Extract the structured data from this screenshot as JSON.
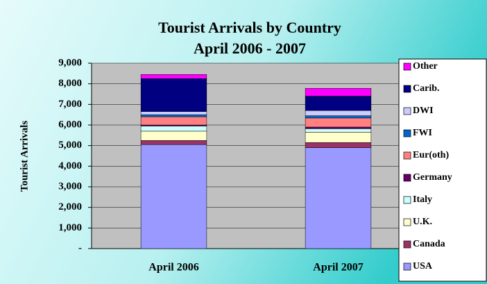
{
  "chart_data": {
    "type": "stacked_bar",
    "title": "Tourist Arrivals by Country",
    "subtitle": "April 2006 - 2007",
    "y_label": "Tourist Arrivals",
    "categories": [
      "April 2006",
      "April 2007"
    ],
    "series": [
      {
        "name": "USA",
        "color": "#9999ff",
        "values": [
          5050,
          4900
        ]
      },
      {
        "name": "Canada",
        "color": "#993366",
        "values": [
          200,
          250
        ]
      },
      {
        "name": "U.K.",
        "color": "#ffffcc",
        "values": [
          450,
          500
        ]
      },
      {
        "name": "Italy",
        "color": "#ccffff",
        "values": [
          250,
          170
        ]
      },
      {
        "name": "Germany",
        "color": "#660066",
        "values": [
          50,
          80
        ]
      },
      {
        "name": "Eur(oth)",
        "color": "#ff8080",
        "values": [
          400,
          440
        ]
      },
      {
        "name": "FWI",
        "color": "#0066cc",
        "values": [
          100,
          110
        ]
      },
      {
        "name": "DWI",
        "color": "#ccccff",
        "values": [
          150,
          250
        ]
      },
      {
        "name": "Carib.",
        "color": "#000080",
        "values": [
          1600,
          700
        ]
      },
      {
        "name": "Other",
        "color": "#ff00ff",
        "values": [
          200,
          380
        ]
      }
    ],
    "ylim": [
      0,
      9000
    ],
    "yticks": [
      {
        "value": 0,
        "label": "-"
      },
      {
        "value": 1000,
        "label": "1,000"
      },
      {
        "value": 2000,
        "label": "2,000"
      },
      {
        "value": 3000,
        "label": "3,000"
      },
      {
        "value": 4000,
        "label": "4,000"
      },
      {
        "value": 5000,
        "label": "5,000"
      },
      {
        "value": 6000,
        "label": "6,000"
      },
      {
        "value": 7000,
        "label": "7,000"
      },
      {
        "value": 8000,
        "label": "8,000"
      },
      {
        "value": 9000,
        "label": "9,000"
      }
    ],
    "grid": true,
    "legend": "right"
  }
}
